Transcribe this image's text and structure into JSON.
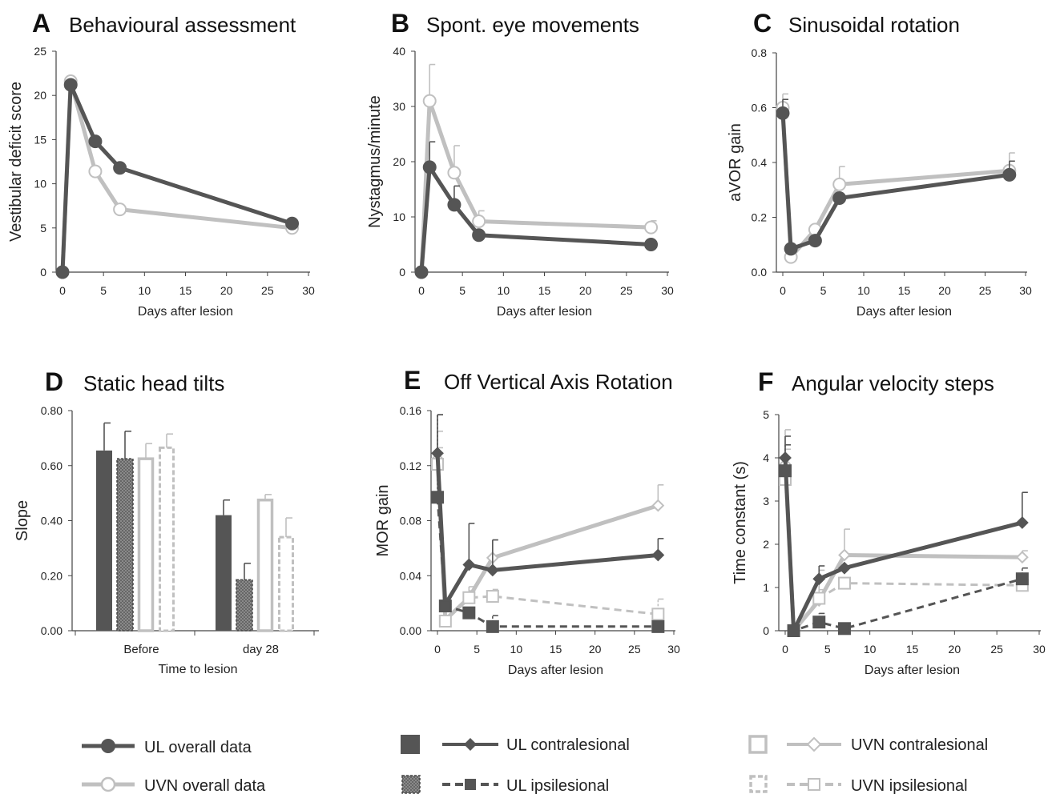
{
  "colors": {
    "dark": "#555555",
    "light": "#c0c0c0",
    "text": "#1a1a1a"
  },
  "chart_data": [
    {
      "letter": "A",
      "title": "Behavioural assessment",
      "type": "line",
      "xlabel": "Days after lesion",
      "ylabel": "Vestibular deficit score",
      "xlim": [
        0,
        30
      ],
      "ylim": [
        0,
        25
      ],
      "xticks": [
        "0",
        "5",
        "10",
        "15",
        "20",
        "25",
        "30"
      ],
      "yticks": [
        "0",
        "5",
        "10",
        "15",
        "20",
        "25"
      ],
      "series": [
        {
          "name": "UL overall data",
          "color": "#555555",
          "marker": "circle",
          "fill": "dark",
          "dash": false,
          "x": [
            0,
            1,
            4,
            7,
            28
          ],
          "y": [
            0,
            21.2,
            14.8,
            11.8,
            5.5
          ],
          "err": [
            0,
            0,
            0,
            0,
            0
          ]
        },
        {
          "name": "UVN overall data",
          "color": "#c0c0c0",
          "marker": "circle",
          "fill": "white",
          "dash": false,
          "x": [
            0,
            1,
            4,
            7,
            28
          ],
          "y": [
            0,
            21.6,
            11.4,
            7.1,
            5.0
          ],
          "err": [
            0,
            0,
            0,
            0,
            0
          ]
        }
      ]
    },
    {
      "letter": "B",
      "title": "Spont. eye movements",
      "type": "line",
      "xlabel": "Days after lesion",
      "ylabel": "Nystagmus/minute",
      "xlim": [
        0,
        30
      ],
      "ylim": [
        0,
        40
      ],
      "xticks": [
        "0",
        "5",
        "10",
        "15",
        "20",
        "25",
        "30"
      ],
      "yticks": [
        "0",
        "10",
        "20",
        "30",
        "40"
      ],
      "series": [
        {
          "name": "UL overall data",
          "color": "#555555",
          "marker": "circle",
          "fill": "dark",
          "dash": false,
          "x": [
            0,
            1,
            4,
            7,
            28
          ],
          "y": [
            0,
            19.0,
            12.2,
            6.7,
            5.0
          ],
          "err": [
            0,
            4.6,
            3.4,
            0,
            0
          ]
        },
        {
          "name": "UVN overall data",
          "color": "#c0c0c0",
          "marker": "circle",
          "fill": "white",
          "dash": false,
          "x": [
            0,
            1,
            4,
            7,
            28
          ],
          "y": [
            0,
            31.0,
            18.0,
            9.2,
            8.1
          ],
          "err": [
            0,
            6.6,
            4.9,
            1.9,
            1.2
          ]
        }
      ]
    },
    {
      "letter": "C",
      "title": "Sinusoidal rotation",
      "type": "line",
      "xlabel": "Days after lesion",
      "ylabel": "aVOR gain",
      "xlim": [
        0,
        30
      ],
      "ylim": [
        0,
        0.8
      ],
      "xticks": [
        "0",
        "5",
        "10",
        "15",
        "20",
        "25",
        "30"
      ],
      "yticks": [
        "0.0",
        "0.2",
        "0.4",
        "0.6",
        "0.8"
      ],
      "series": [
        {
          "name": "UL overall data",
          "color": "#555555",
          "marker": "circle",
          "fill": "dark",
          "dash": false,
          "x": [
            0,
            1,
            4,
            7,
            28
          ],
          "y": [
            0.58,
            0.085,
            0.115,
            0.27,
            0.355
          ],
          "err": [
            0.05,
            0,
            0,
            0,
            0.05
          ]
        },
        {
          "name": "UVN overall data",
          "color": "#c0c0c0",
          "marker": "circle",
          "fill": "white",
          "dash": false,
          "x": [
            0,
            1,
            4,
            7,
            28
          ],
          "y": [
            0.6,
            0.055,
            0.155,
            0.32,
            0.37
          ],
          "err": [
            0.05,
            0,
            0.02,
            0.065,
            0.065
          ]
        }
      ]
    },
    {
      "letter": "D",
      "title": "Static head tilts",
      "type": "bar",
      "xlabel": "Time to lesion",
      "ylabel": "Slope",
      "ylim": [
        0,
        0.8
      ],
      "yticks": [
        "0.00",
        "0.20",
        "0.40",
        "0.60",
        "0.80"
      ],
      "categories": [
        "Before",
        "day 28"
      ],
      "series": [
        {
          "name": "UL contralesional",
          "style": "solid-dark",
          "values": [
            0.655,
            0.42
          ],
          "err": [
            0.1,
            0.055
          ]
        },
        {
          "name": "UL ipsilesional",
          "style": "hatched-dark",
          "values": [
            0.625,
            0.185
          ],
          "err": [
            0.1,
            0.06
          ]
        },
        {
          "name": "UVN contralesional",
          "style": "outline-light",
          "values": [
            0.625,
            0.475
          ],
          "err": [
            0.055,
            0.02
          ]
        },
        {
          "name": "UVN ipsilesional",
          "style": "dashed-light",
          "values": [
            0.665,
            0.34
          ],
          "err": [
            0.05,
            0.07
          ]
        }
      ]
    },
    {
      "letter": "E",
      "title": "Off Vertical Axis Rotation",
      "type": "line",
      "xlabel": "Days after lesion",
      "ylabel": "MOR gain",
      "xlim": [
        0,
        30
      ],
      "ylim": [
        0,
        0.16
      ],
      "xticks": [
        "0",
        "5",
        "10",
        "15",
        "20",
        "25",
        "30"
      ],
      "yticks": [
        "0.00",
        "0.04",
        "0.08",
        "0.12",
        "0.16"
      ],
      "series": [
        {
          "name": "UL contralesional",
          "color": "#555555",
          "marker": "diamond",
          "fill": "dark",
          "dash": false,
          "x": [
            0,
            1,
            4,
            7,
            28
          ],
          "y": [
            0.129,
            0.019,
            0.048,
            0.044,
            0.055
          ],
          "err": [
            0.028,
            0,
            0.03,
            0.022,
            0.012
          ]
        },
        {
          "name": "UL ipsilesional",
          "color": "#555555",
          "marker": "square",
          "fill": "dark",
          "dash": true,
          "x": [
            0,
            1,
            4,
            7,
            28
          ],
          "y": [
            0.097,
            0.018,
            0.013,
            0.003,
            0.003
          ],
          "err": [
            0.06,
            0,
            0.004,
            0.008,
            0
          ]
        },
        {
          "name": "UVN contralesional",
          "color": "#c0c0c0",
          "marker": "diamond",
          "fill": "white",
          "dash": false,
          "x": [
            0,
            1,
            4,
            7,
            28
          ],
          "y": [
            0.125,
            0.008,
            0.024,
            0.053,
            0.091
          ],
          "err": [
            0.02,
            0,
            0.008,
            0.013,
            0.015
          ]
        },
        {
          "name": "UVN ipsilesional",
          "color": "#c0c0c0",
          "marker": "square",
          "fill": "white",
          "dash": true,
          "x": [
            0,
            1,
            4,
            7,
            28
          ],
          "y": [
            0.121,
            0.007,
            0.024,
            0.025,
            0.012
          ],
          "err": [
            0.012,
            0,
            0.005,
            0.005,
            0.011
          ]
        }
      ]
    },
    {
      "letter": "F",
      "title": "Angular velocity steps",
      "type": "line",
      "xlabel": "Days after lesion",
      "ylabel": "Time constant (s)",
      "xlim": [
        0,
        30
      ],
      "ylim": [
        0,
        5
      ],
      "xticks": [
        "0",
        "5",
        "10",
        "15",
        "20",
        "25",
        "30"
      ],
      "yticks": [
        "0",
        "1",
        "2",
        "3",
        "4",
        "5"
      ],
      "series": [
        {
          "name": "UL contralesional",
          "color": "#555555",
          "marker": "diamond",
          "fill": "dark",
          "dash": false,
          "x": [
            0,
            1,
            4,
            7,
            28
          ],
          "y": [
            4.0,
            0,
            1.2,
            1.45,
            2.5
          ],
          "err": [
            0.5,
            0,
            0.3,
            0,
            0.7
          ]
        },
        {
          "name": "UL ipsilesional",
          "color": "#555555",
          "marker": "square",
          "fill": "dark",
          "dash": true,
          "x": [
            0,
            1,
            4,
            7,
            28
          ],
          "y": [
            3.7,
            0,
            0.2,
            0.05,
            1.2
          ],
          "err": [
            0.6,
            0,
            0.2,
            0,
            0.25
          ]
        },
        {
          "name": "UVN contralesional",
          "color": "#c0c0c0",
          "marker": "diamond",
          "fill": "white",
          "dash": false,
          "x": [
            0,
            1,
            4,
            7,
            28
          ],
          "y": [
            3.85,
            0,
            0.7,
            1.75,
            1.7
          ],
          "err": [
            0.8,
            0,
            0.7,
            0.6,
            0.15
          ]
        },
        {
          "name": "UVN ipsilesional",
          "color": "#c0c0c0",
          "marker": "square",
          "fill": "white",
          "dash": true,
          "x": [
            0,
            1,
            4,
            7,
            28
          ],
          "y": [
            3.5,
            0,
            0.75,
            1.1,
            1.05
          ],
          "err": [
            0.7,
            0,
            0.2,
            0,
            0
          ]
        }
      ]
    }
  ],
  "legend": {
    "ul_overall": "UL overall data",
    "uvn_overall": "UVN overall data",
    "ul_contra": "UL contralesional",
    "ul_ipsi": "UL ipsilesional",
    "uvn_contra": "UVN contralesional",
    "uvn_ipsi": "UVN ipsilesional"
  }
}
